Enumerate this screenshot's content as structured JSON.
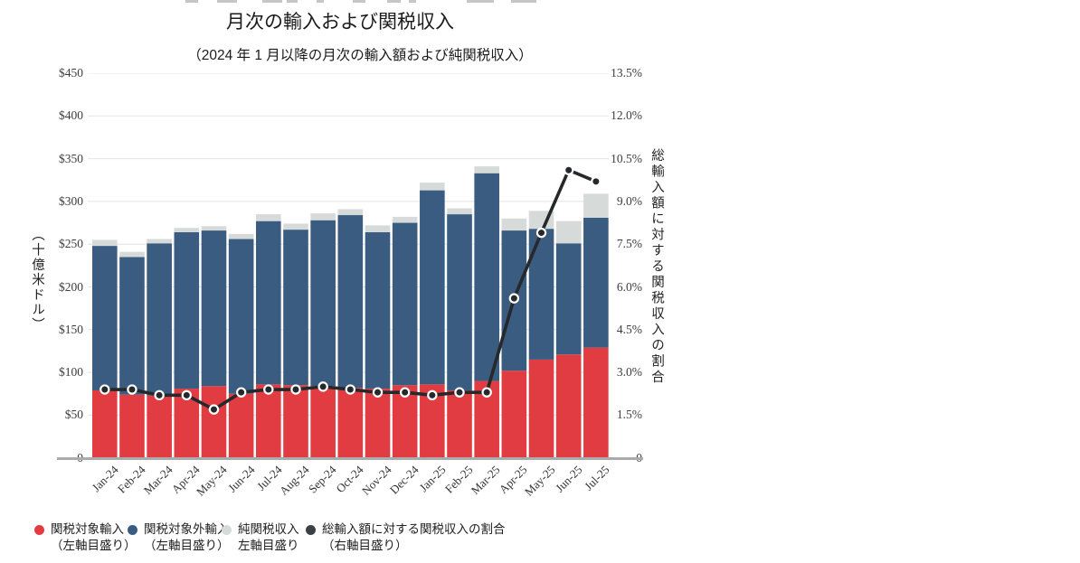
{
  "header": {
    "title": "月次の輸入および関税収入",
    "subtitle": "（2024 年 1 月以降の月次の輸入額および純関税収入）"
  },
  "chart_data": {
    "type": "bar",
    "subtype": "stacked-bars-with-line-overlay",
    "categories": [
      "Jan-24",
      "Feb-24",
      "Mar-24",
      "Apr-24",
      "May-24",
      "Jun-24",
      "Jul-24",
      "Aug-24",
      "Sep-24",
      "Oct-24",
      "Nov-24",
      "Dec-24",
      "Jan-25",
      "Feb-25",
      "Mar-25",
      "Apr-25",
      "May-25",
      "Jun-25",
      "Jul-25"
    ],
    "series": [
      {
        "name": "関税対象輸入（左軸目盛り）",
        "type": "bar",
        "axis": "left",
        "color": "#e23c43",
        "values": [
          79,
          74,
          73,
          81,
          84,
          75,
          86,
          85,
          84,
          82,
          81,
          85,
          86,
          79,
          90,
          102,
          115,
          121,
          129
        ]
      },
      {
        "name": "関税対象外輸入（左軸目盛り）",
        "type": "bar",
        "axis": "left",
        "color": "#3a5c81",
        "values": [
          169,
          161,
          178,
          183,
          182,
          181,
          191,
          182,
          194,
          202,
          183,
          190,
          227,
          206,
          243,
          164,
          153,
          130,
          152
        ]
      },
      {
        "name": "純関税収入 左軸目盛り",
        "type": "bar",
        "axis": "left",
        "color": "#d6dad9",
        "values": [
          7,
          6,
          5,
          5,
          5,
          6,
          8,
          7,
          8,
          7,
          8,
          7,
          9,
          7,
          8,
          14,
          21,
          26,
          28
        ]
      },
      {
        "name": "総輸入額に対する関税収入の割合（右軸目盛り）",
        "type": "line",
        "axis": "right",
        "color": "#26292b",
        "values": [
          2.4,
          2.4,
          2.2,
          2.2,
          1.7,
          2.3,
          2.4,
          2.4,
          2.5,
          2.4,
          2.3,
          2.3,
          2.2,
          2.3,
          2.3,
          5.6,
          7.9,
          10.1,
          9.7
        ]
      }
    ],
    "left_axis": {
      "label": "（十億米ドル）",
      "min": 0,
      "max": 450,
      "ticks": [
        "$450",
        "$400",
        "$350",
        "$300",
        "$250",
        "$200",
        "$150",
        "$100",
        "$50",
        "0"
      ]
    },
    "right_axis": {
      "label": "総輸入額に対する関税収入の割合",
      "min": 0,
      "max": 13.5,
      "ticks": [
        "13.5%",
        "12.0%",
        "10.5%",
        "9.0%",
        "7.5%",
        "6.0%",
        "4.5%",
        "3.0%",
        "1.5%",
        "0"
      ]
    },
    "grid": "horizontal",
    "legend_position": "bottom"
  },
  "legend": {
    "items": [
      {
        "line1": "関税対象輸入",
        "line2": "（左軸目盛り）",
        "color": "#e23c43"
      },
      {
        "line1": "関税対象外輸入",
        "line2": "（左軸目盛り）",
        "color": "#3a5c81"
      },
      {
        "line1": "純関税収入",
        "line2": "左軸目盛り",
        "color": "#d6dad9"
      },
      {
        "line1": "総輸入額に対する関税収入の割合",
        "line2": "（右軸目盛り）",
        "color": "#3b4044"
      }
    ]
  },
  "colors": {
    "gridline": "#e4e4e4",
    "baseline": "#ababab",
    "line_series": "#26292b",
    "dot_ring": "#ffffff",
    "tick_text": "#3d3d3d",
    "title_text": "#1b1b1b"
  }
}
